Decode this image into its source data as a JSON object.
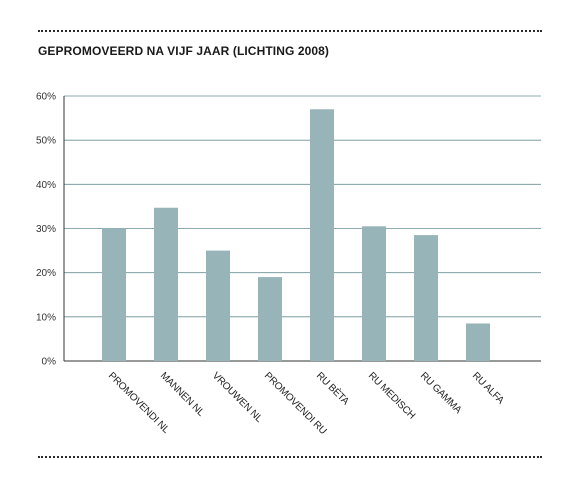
{
  "chart": {
    "title": "GEPROMOVEERD NA VIJF JAAR (LICHTING 2008)"
  },
  "colors": {
    "bar": "#97b5b8",
    "grid": "#6a8f94",
    "axis": "#333333",
    "rule": "#2b2b2b"
  },
  "chart_data": {
    "type": "bar",
    "title": "GEPROMOVEERD NA VIJF JAAR (LICHTING 2008)",
    "xlabel": "",
    "ylabel": "",
    "categories": [
      "PROMOVENDI NL",
      "MANNEN NL",
      "VROUWEN NL",
      "PROMOVENDI RU",
      "RU BÈTA",
      "RU MEDISCH",
      "RU GAMMA",
      "RU ALFA"
    ],
    "values": [
      30,
      34.7,
      25,
      19,
      57,
      30.5,
      28.5,
      8.5
    ],
    "ylim": [
      0,
      60
    ],
    "yticks": [
      0,
      10,
      20,
      30,
      40,
      50,
      60
    ],
    "ytick_labels": [
      "0%",
      "10%",
      "20%",
      "30%",
      "40%",
      "50%",
      "60%"
    ],
    "grid": true,
    "legend": "none"
  }
}
